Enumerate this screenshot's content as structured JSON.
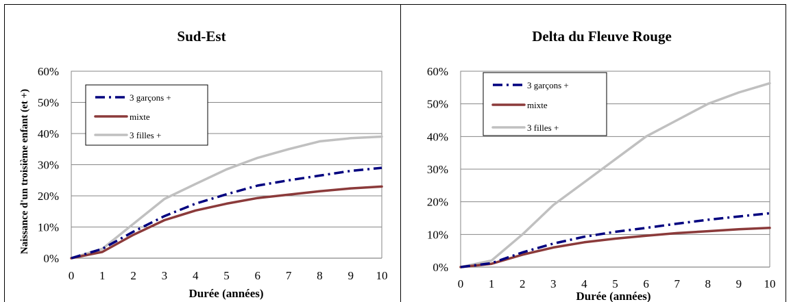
{
  "chart_data": [
    {
      "type": "line",
      "title": "Sud-Est",
      "xlabel": "Durée (années)",
      "ylabel": "Naissance d'un troisième enfant (et +)",
      "x": [
        0,
        1,
        2,
        3,
        4,
        5,
        6,
        7,
        8,
        9,
        10
      ],
      "xlim": [
        0,
        10
      ],
      "ylim": [
        0,
        0.6
      ],
      "xticks": [
        "0",
        "1",
        "2",
        "3",
        "4",
        "5",
        "6",
        "7",
        "8",
        "9",
        "10"
      ],
      "yticks": [
        "0%",
        "10%",
        "20%",
        "30%",
        "40%",
        "50%",
        "60%"
      ],
      "grid": true,
      "legend": "top-left",
      "series": [
        {
          "name": "3 garçons +",
          "color": "#00007f",
          "style": "dash-dot",
          "values": [
            0,
            0.03,
            0.085,
            0.135,
            0.175,
            0.205,
            0.233,
            0.25,
            0.265,
            0.28,
            0.29
          ]
        },
        {
          "name": "mixte",
          "color": "#8b3a3a",
          "style": "solid",
          "values": [
            0,
            0.02,
            0.075,
            0.122,
            0.153,
            0.175,
            0.193,
            0.204,
            0.215,
            0.224,
            0.23
          ]
        },
        {
          "name": "3 filles +",
          "color": "#c0c0c0",
          "style": "solid",
          "values": [
            0,
            0.03,
            0.11,
            0.19,
            0.238,
            0.285,
            0.322,
            0.35,
            0.375,
            0.385,
            0.39
          ]
        }
      ]
    },
    {
      "type": "line",
      "title": "Delta du Fleuve Rouge",
      "xlabel": "Durée (années)",
      "ylabel": "",
      "x": [
        0,
        1,
        2,
        3,
        4,
        5,
        6,
        7,
        8,
        9,
        10
      ],
      "xlim": [
        0,
        10
      ],
      "ylim": [
        0,
        0.6
      ],
      "xticks": [
        "0",
        "1",
        "2",
        "3",
        "4",
        "5",
        "6",
        "7",
        "8",
        "9",
        "10"
      ],
      "yticks": [
        "0%",
        "10%",
        "20%",
        "30%",
        "40%",
        "50%",
        "60%"
      ],
      "grid": true,
      "legend": "top-left",
      "series": [
        {
          "name": "3 garçons +",
          "color": "#00007f",
          "style": "dash-dot",
          "values": [
            0,
            0.012,
            0.045,
            0.072,
            0.093,
            0.108,
            0.12,
            0.133,
            0.145,
            0.155,
            0.165
          ]
        },
        {
          "name": "mixte",
          "color": "#8b3a3a",
          "style": "solid",
          "values": [
            0,
            0.01,
            0.038,
            0.06,
            0.076,
            0.087,
            0.096,
            0.104,
            0.11,
            0.116,
            0.12
          ]
        },
        {
          "name": "3 filles +",
          "color": "#c0c0c0",
          "style": "solid",
          "values": [
            0,
            0.02,
            0.1,
            0.19,
            0.26,
            0.33,
            0.4,
            0.45,
            0.5,
            0.535,
            0.563
          ]
        }
      ]
    }
  ]
}
